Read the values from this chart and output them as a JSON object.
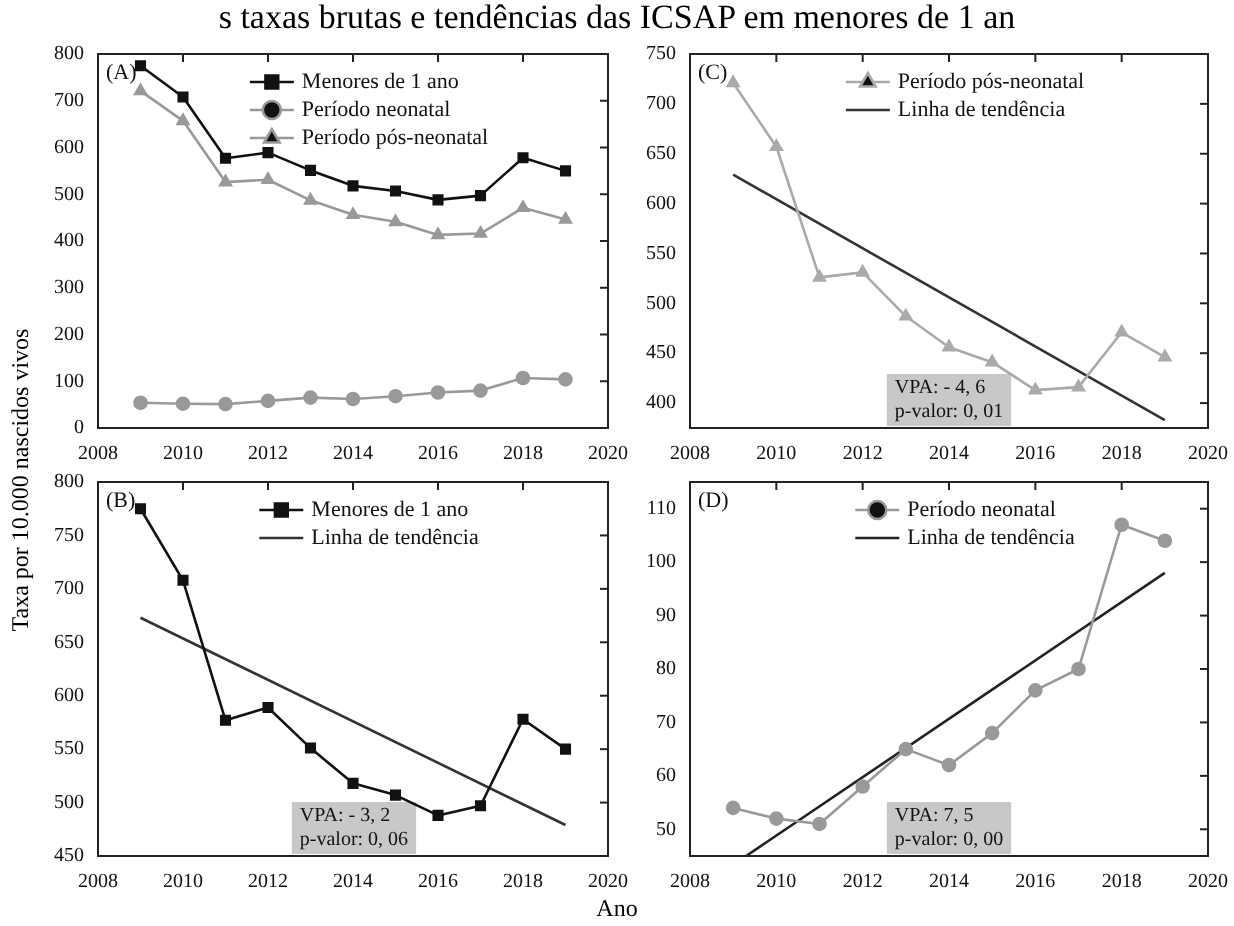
{
  "chart_data": [
    {
      "type": "line",
      "title": "s taxas brutas e tendências das ICSAP em menores de 1 an",
      "ylabel": "Taxa por 10.000 nascidos vivos",
      "annotations": [
        "(A)"
      ],
      "x": [
        2009,
        2010,
        2011,
        2012,
        2013,
        2014,
        2015,
        2016,
        2017,
        2018,
        2019
      ],
      "xlim": [
        2008,
        2020
      ],
      "xticks": [
        2008,
        2010,
        2012,
        2014,
        2016,
        2018,
        2020
      ],
      "ylim": [
        0,
        800
      ],
      "yticks": [
        0,
        100,
        200,
        300,
        400,
        500,
        600,
        700,
        800
      ],
      "grid": false,
      "legend": "top",
      "line_style": "solid",
      "series": [
        {
          "name": "Menores de 1 ano",
          "color": "#111111",
          "marker": "square",
          "values": [
            775,
            708,
            577,
            589,
            551,
            518,
            507,
            488,
            497,
            578,
            550
          ]
        },
        {
          "name": "Período neonatal",
          "color": "#999999",
          "marker": "circle",
          "values": [
            54,
            52,
            51,
            58,
            65,
            62,
            68,
            76,
            80,
            107,
            104
          ]
        },
        {
          "name": "Período pós-neonatal",
          "color": "#999999",
          "marker": "triangle",
          "values": [
            721,
            657,
            526,
            531,
            487,
            456,
            441,
            413,
            416,
            471,
            446
          ]
        }
      ]
    },
    {
      "type": "line",
      "annotations": [
        "(C)",
        "VPA: - 4, 6",
        "p-valor: 0, 01"
      ],
      "xlim": [
        2008,
        2020
      ],
      "xticks": [
        2008,
        2010,
        2012,
        2014,
        2016,
        2018,
        2020
      ],
      "ylim": [
        375,
        750
      ],
      "yticks": [
        400,
        450,
        500,
        550,
        600,
        650,
        700,
        750
      ],
      "grid": false,
      "legend": "top",
      "line_style": "solid",
      "series": [
        {
          "name": "Período pós-neonatal",
          "color": "#aaaaaa",
          "marker": "triangle",
          "x": [
            2009,
            2010,
            2011,
            2012,
            2013,
            2014,
            2015,
            2016,
            2017,
            2018,
            2019
          ],
          "values": [
            721,
            657,
            526,
            531,
            487,
            456,
            441,
            413,
            416,
            471,
            446
          ]
        },
        {
          "name": "Linha de tendência",
          "color": "#333333",
          "marker": "none",
          "x": [
            2009,
            2019
          ],
          "values": [
            629,
            383
          ]
        }
      ]
    },
    {
      "type": "line",
      "annotations": [
        "(B)",
        "VPA: - 3, 2",
        "p-valor: 0, 06"
      ],
      "xlim": [
        2008,
        2020
      ],
      "xticks": [
        2008,
        2010,
        2012,
        2014,
        2016,
        2018,
        2020
      ],
      "ylim": [
        450,
        800
      ],
      "yticks": [
        450,
        500,
        550,
        600,
        650,
        700,
        750,
        800
      ],
      "grid": false,
      "legend": "top",
      "line_style": "solid",
      "series": [
        {
          "name": "Menores de 1 ano",
          "color": "#111111",
          "marker": "square",
          "x": [
            2009,
            2010,
            2011,
            2012,
            2013,
            2014,
            2015,
            2016,
            2017,
            2018,
            2019
          ],
          "values": [
            775,
            708,
            577,
            589,
            551,
            518,
            507,
            488,
            497,
            578,
            550
          ]
        },
        {
          "name": "Linha de tendência",
          "color": "#333333",
          "marker": "none",
          "x": [
            2009,
            2019
          ],
          "values": [
            673,
            479
          ]
        }
      ]
    },
    {
      "type": "line",
      "xlabel": "Ano",
      "annotations": [
        "(D)",
        "VPA: 7, 5",
        "p-valor: 0, 00"
      ],
      "xlim": [
        2008,
        2020
      ],
      "xticks": [
        2008,
        2010,
        2012,
        2014,
        2016,
        2018,
        2020
      ],
      "ylim": [
        45,
        115
      ],
      "yticks": [
        50,
        60,
        70,
        80,
        90,
        100,
        110
      ],
      "grid": false,
      "legend": "top",
      "line_style": "solid",
      "series": [
        {
          "name": "Período neonatal",
          "color": "#999999",
          "marker": "circle",
          "x": [
            2009,
            2010,
            2011,
            2012,
            2013,
            2014,
            2015,
            2016,
            2017,
            2018,
            2019
          ],
          "values": [
            54,
            52,
            51,
            58,
            65,
            62,
            68,
            76,
            80,
            107,
            104
          ]
        },
        {
          "name": "Linha de tendência",
          "color": "#222222",
          "marker": "none",
          "x": [
            2009.3,
            2019
          ],
          "values": [
            45,
            98
          ]
        }
      ]
    }
  ]
}
